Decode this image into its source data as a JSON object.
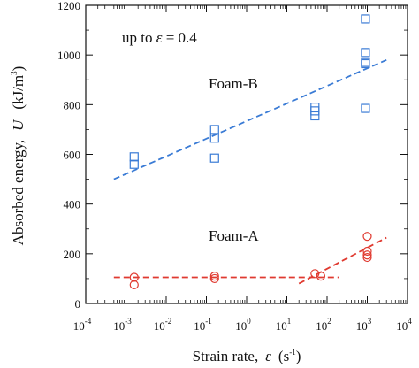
{
  "chart_data": {
    "type": "scatter",
    "xscale": "log",
    "xlim": [
      0.0001,
      10000
    ],
    "ylim": [
      0,
      1200
    ],
    "x_ticks": [
      {
        "base": "10",
        "exp": "-4"
      },
      {
        "base": "10",
        "exp": "-3"
      },
      {
        "base": "10",
        "exp": "-2"
      },
      {
        "base": "10",
        "exp": "-1"
      },
      {
        "base": "10",
        "exp": "0"
      },
      {
        "base": "10",
        "exp": "1"
      },
      {
        "base": "10",
        "exp": "2"
      },
      {
        "base": "10",
        "exp": "3"
      },
      {
        "base": "10",
        "exp": "4"
      }
    ],
    "y_ticks": [
      "0",
      "200",
      "400",
      "600",
      "800",
      "1000",
      "1200"
    ],
    "xlabel": {
      "main": "Strain rate,",
      "symbol": "ε",
      "unit": "(s",
      "unit_exp": "-1",
      "unit_end": ")"
    },
    "ylabel": {
      "main": "Absorbed energy,",
      "symbol": "U",
      "unit": "(kJ/m",
      "unit_exp": "3",
      "unit_end": ")"
    },
    "annotation": {
      "prefix": "up to ",
      "symbol": "ε",
      "suffix": " = 0.4"
    },
    "series": [
      {
        "name": "Foam-B",
        "marker": "square",
        "color": "#3a7bd5",
        "points": [
          [
            0.0016,
            590
          ],
          [
            0.0016,
            560
          ],
          [
            0.16,
            700
          ],
          [
            0.16,
            665
          ],
          [
            0.16,
            585
          ],
          [
            50,
            790
          ],
          [
            50,
            775
          ],
          [
            50,
            755
          ],
          [
            900,
            1145
          ],
          [
            900,
            1010
          ],
          [
            900,
            970
          ],
          [
            900,
            965
          ],
          [
            900,
            785
          ]
        ],
        "fit": [
          [
            0.0005,
            500
          ],
          [
            3000,
            980
          ]
        ]
      },
      {
        "name": "Foam-A",
        "marker": "circle",
        "color": "#e03a30",
        "points": [
          [
            0.0016,
            105
          ],
          [
            0.0016,
            75
          ],
          [
            0.16,
            110
          ],
          [
            0.16,
            100
          ],
          [
            50,
            120
          ],
          [
            70,
            110
          ],
          [
            1000,
            270
          ],
          [
            1000,
            210
          ],
          [
            1000,
            195
          ],
          [
            1000,
            185
          ]
        ],
        "fits": [
          [
            [
              0.0005,
              105
            ],
            [
              200,
              105
            ]
          ],
          [
            [
              20,
              80
            ],
            [
              3000,
              265
            ]
          ]
        ]
      }
    ]
  }
}
